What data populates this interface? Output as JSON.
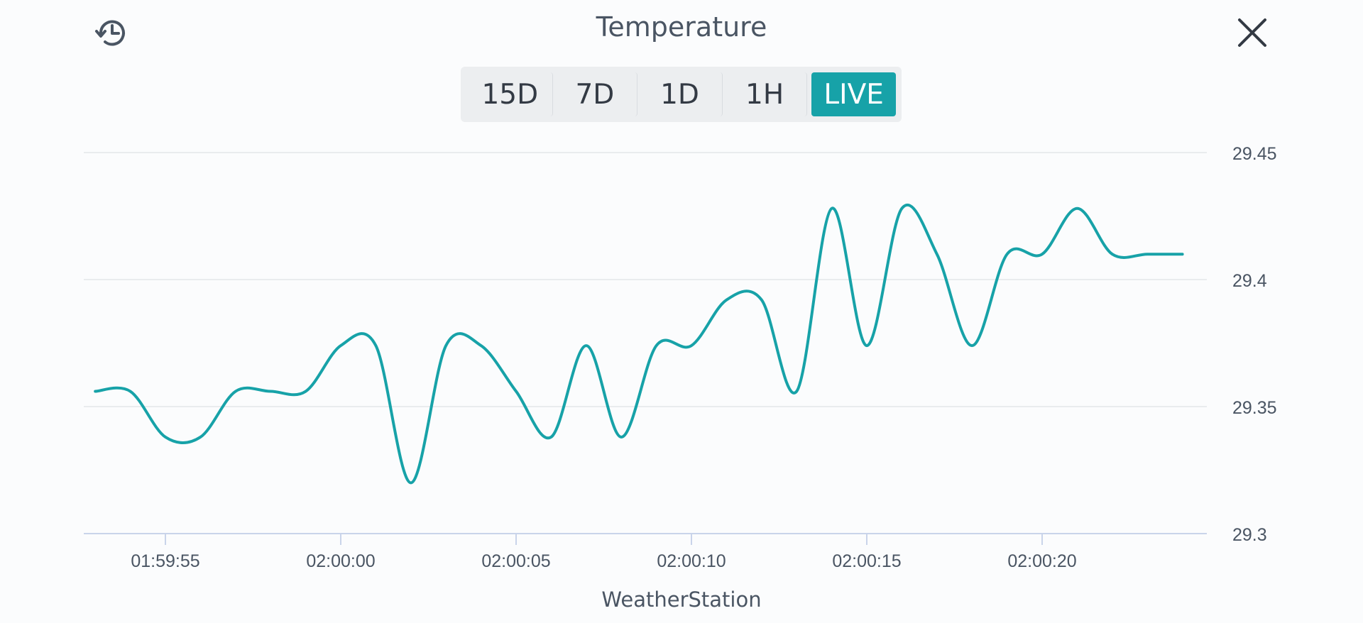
{
  "header": {
    "title": "Temperature",
    "history_icon": "history-icon",
    "close_icon": "close-icon"
  },
  "ranges": [
    "15D",
    "7D",
    "1D",
    "1H",
    "LIVE"
  ],
  "active_range": "LIVE",
  "colors": {
    "line": "#17a2a8",
    "accent": "#17a2a8",
    "grid": "#e3e6ea",
    "axis": "#c9d4ea",
    "text": "#4a5563"
  },
  "chart_data": {
    "type": "line",
    "title": "",
    "xlabel": "WeatherStation",
    "ylabel": "",
    "ylim": [
      29.3,
      29.45
    ],
    "grid": true,
    "y_ticks": [
      "29.45",
      "29.4",
      "29.35",
      "29.3"
    ],
    "x_ticks": [
      "01:59:55",
      "02:00:00",
      "02:00:05",
      "02:00:10",
      "02:00:15",
      "02:00:20"
    ],
    "series": [
      {
        "x": [
          "01:59:53",
          "01:59:54",
          "01:59:55",
          "01:59:56",
          "01:59:57",
          "01:59:58",
          "01:59:59",
          "02:00:00",
          "02:00:01",
          "02:00:02",
          "02:00:03",
          "02:00:04",
          "02:00:05",
          "02:00:06",
          "02:00:07",
          "02:00:08",
          "02:00:09",
          "02:00:10",
          "02:00:11",
          "02:00:12",
          "02:00:13",
          "02:00:14",
          "02:00:15",
          "02:00:16",
          "02:00:17",
          "02:00:18",
          "02:00:19",
          "02:00:20",
          "02:00:21",
          "02:00:22",
          "02:00:23",
          "02:00:24"
        ],
        "values": [
          29.356,
          29.356,
          29.338,
          29.338,
          29.356,
          29.356,
          29.356,
          29.374,
          29.374,
          29.32,
          29.374,
          29.374,
          29.356,
          29.338,
          29.374,
          29.338,
          29.374,
          29.374,
          29.392,
          29.392,
          29.356,
          29.428,
          29.374,
          29.428,
          29.41,
          29.374,
          29.41,
          29.41,
          29.428,
          29.41,
          29.41,
          29.41
        ]
      }
    ]
  }
}
